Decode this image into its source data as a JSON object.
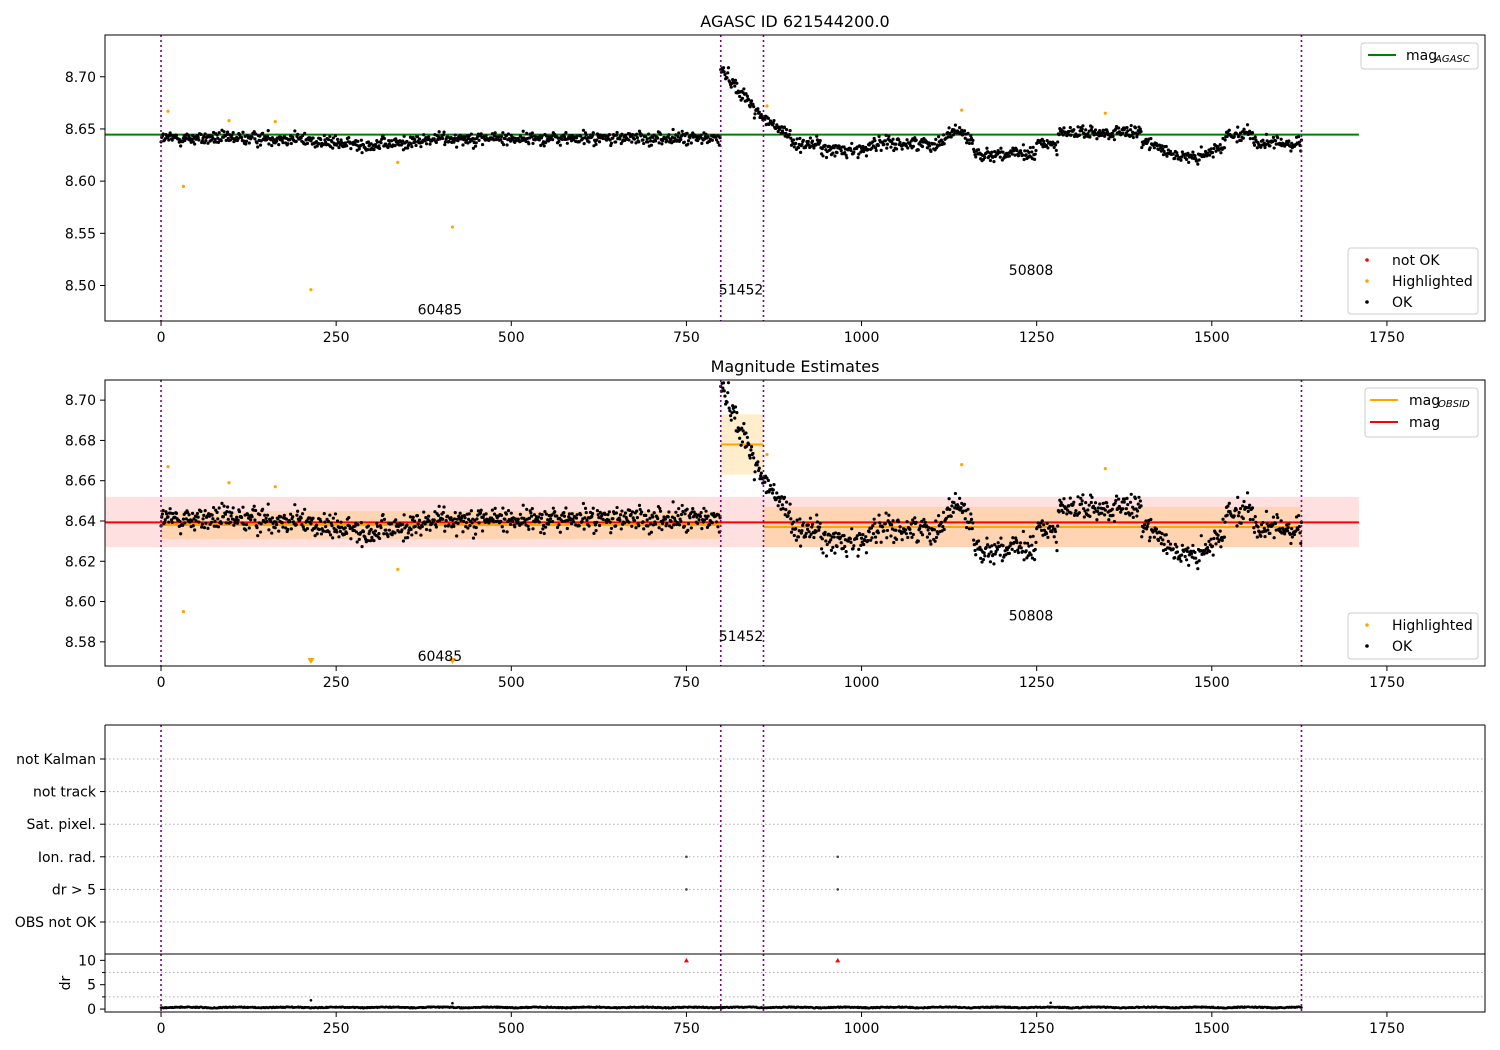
{
  "chart_data": [
    {
      "type": "scatter",
      "title": "AGASC ID 621544200.0",
      "xlim": [
        -80,
        1890
      ],
      "ylim": [
        8.466,
        8.74
      ],
      "x_ticks": [
        0,
        250,
        500,
        750,
        1000,
        1250,
        1500,
        1750
      ],
      "y_ticks": [
        8.5,
        8.55,
        8.6,
        8.65,
        8.7
      ],
      "y_tick_labels": [
        "8.50",
        "8.55",
        "8.60",
        "8.65",
        "8.70"
      ],
      "obsid_bounds": [
        0,
        799,
        860,
        1628
      ],
      "obsid_labels": [
        {
          "text": "60485",
          "x": 398,
          "y": 8.477
        },
        {
          "text": "51452",
          "x": 828,
          "y": 8.496
        },
        {
          "text": "50808",
          "x": 1242,
          "y": 8.515
        }
      ],
      "reference_lines": [
        {
          "name": "mag_AGASC",
          "value": 8.6445,
          "x_range": [
            -80,
            1710
          ],
          "color": "#008000"
        }
      ],
      "highlighted_points": [
        {
          "x": 10,
          "y": 8.667
        },
        {
          "x": 32,
          "y": 8.595
        },
        {
          "x": 97,
          "y": 8.658
        },
        {
          "x": 163,
          "y": 8.657
        },
        {
          "x": 214,
          "y": 8.496
        },
        {
          "x": 338,
          "y": 8.618
        },
        {
          "x": 416,
          "y": 8.556
        },
        {
          "x": 865,
          "y": 8.672
        },
        {
          "x": 1143,
          "y": 8.668
        },
        {
          "x": 1348,
          "y": 8.665
        }
      ],
      "legend_upper": [
        {
          "label": "mag",
          "sub": "AGASC",
          "color": "#008000",
          "marker": "line"
        }
      ],
      "legend_lower": [
        {
          "label": "not OK",
          "color": "#ff0000",
          "marker": "dot"
        },
        {
          "label": "Highlighted",
          "color": "#ffa500",
          "marker": "dot"
        },
        {
          "label": "OK",
          "color": "#000000",
          "marker": "dot"
        }
      ],
      "legend_placement": [
        "top-right",
        "bottom-right"
      ]
    },
    {
      "type": "scatter",
      "title": "Magnitude Estimates",
      "xlim": [
        -80,
        1890
      ],
      "ylim": [
        8.568,
        8.71
      ],
      "x_ticks": [
        0,
        250,
        500,
        750,
        1000,
        1250,
        1500,
        1750
      ],
      "y_ticks": [
        8.58,
        8.6,
        8.62,
        8.64,
        8.66,
        8.68,
        8.7
      ],
      "y_tick_labels": [
        "8.58",
        "8.60",
        "8.62",
        "8.64",
        "8.66",
        "8.68",
        "8.70"
      ],
      "obsid_bounds": [
        0,
        799,
        860,
        1628
      ],
      "obsid_labels": [
        {
          "text": "60485",
          "x": 398,
          "y": 8.573
        },
        {
          "text": "51452",
          "x": 828,
          "y": 8.583
        },
        {
          "text": "50808",
          "x": 1242,
          "y": 8.593
        }
      ],
      "mag_line": {
        "value": 8.6393,
        "band": [
          8.627,
          8.652
        ],
        "x_range": [
          -80,
          1710
        ],
        "color": "#ff0000"
      },
      "obsid_mags": [
        {
          "x_range": [
            0,
            799
          ],
          "value": 8.638,
          "band": [
            8.631,
            8.645
          ]
        },
        {
          "x_range": [
            799,
            860
          ],
          "value": 8.678,
          "band": [
            8.663,
            8.693
          ]
        },
        {
          "x_range": [
            860,
            1628
          ],
          "value": 8.637,
          "band": [
            8.627,
            8.647
          ]
        }
      ],
      "highlighted_points": [
        {
          "x": 10,
          "y": 8.667
        },
        {
          "x": 32,
          "y": 8.595
        },
        {
          "x": 97,
          "y": 8.659
        },
        {
          "x": 163,
          "y": 8.657
        },
        {
          "x": 338,
          "y": 8.616
        },
        {
          "x": 865,
          "y": 8.673
        },
        {
          "x": 1143,
          "y": 8.668
        },
        {
          "x": 1348,
          "y": 8.666
        }
      ],
      "offscale_markers": [
        {
          "x": 214
        },
        {
          "x": 416
        }
      ],
      "legend_upper": [
        {
          "label": "mag",
          "sub": "OBSID",
          "color": "#ffa500",
          "marker": "line"
        },
        {
          "label": "mag",
          "sub": "",
          "color": "#ff0000",
          "marker": "line"
        }
      ],
      "legend_lower": [
        {
          "label": "Highlighted",
          "color": "#ffa500",
          "marker": "dot"
        },
        {
          "label": "OK",
          "color": "#000000",
          "marker": "dot"
        }
      ],
      "legend_placement": [
        "top-right",
        "bottom-right"
      ]
    },
    {
      "type": "scatter",
      "xlim": [
        -80,
        1890
      ],
      "obsid_bounds": [
        0,
        799,
        860,
        1628
      ],
      "flag_categories": [
        "not Kalman",
        "not track",
        "Sat. pixel.",
        "Ion. rad.",
        "dr > 5",
        "OBS not OK"
      ],
      "flag_points": [
        {
          "category": "Ion. rad.",
          "x": 750
        },
        {
          "category": "Ion. rad.",
          "x": 966
        },
        {
          "category": "dr > 5",
          "x": 750
        },
        {
          "category": "dr > 5",
          "x": 966
        }
      ],
      "x_ticks": [
        0,
        250,
        500,
        750,
        1000,
        1250,
        1500,
        1750
      ]
    },
    {
      "type": "scatter",
      "ylabel": "dr",
      "xlim": [
        -80,
        1890
      ],
      "ylim": [
        -0.6,
        11.3
      ],
      "x_ticks": [
        0,
        250,
        500,
        750,
        1000,
        1250,
        1500,
        1750
      ],
      "y_ticks": [
        0,
        5,
        10
      ],
      "y_tick_labels": [
        "0",
        "5",
        "10"
      ],
      "obsid_bounds": [
        0,
        799,
        860,
        1628
      ],
      "outliers": [
        {
          "x": 214,
          "y": 1.8
        },
        {
          "x": 416,
          "y": 1.2
        },
        {
          "x": 1270,
          "y": 1.3
        }
      ],
      "clipped_markers": [
        {
          "x": 750,
          "y": 10
        },
        {
          "x": 966,
          "y": 10
        }
      ]
    }
  ]
}
